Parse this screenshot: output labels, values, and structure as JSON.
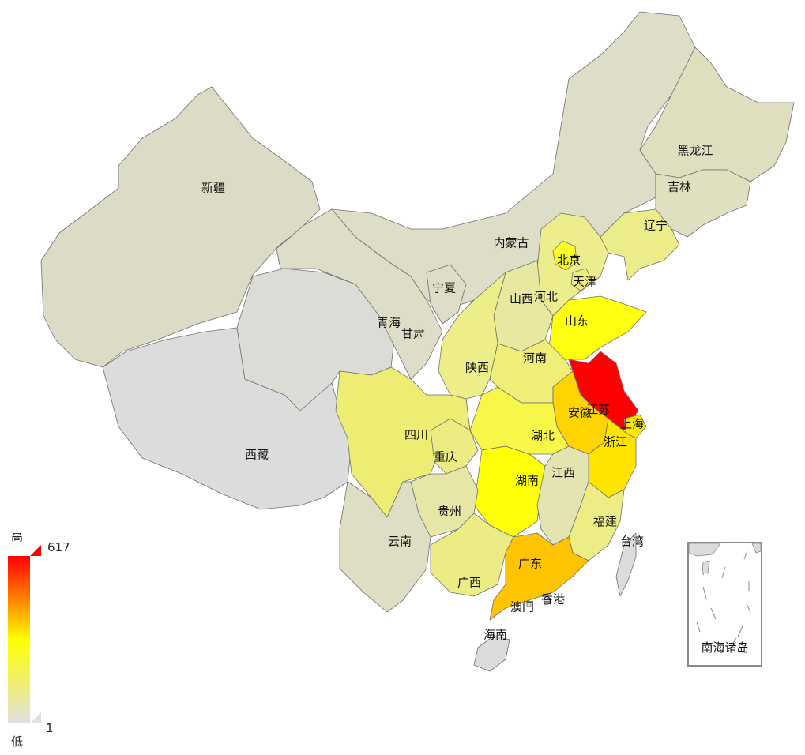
{
  "legend": {
    "high_label": "高",
    "low_label": "低",
    "max_value": "617",
    "min_value": "1",
    "colors": [
      "#ff0000",
      "#ffff00",
      "#e0e0e0"
    ]
  },
  "inset": {
    "label": "南海诸岛"
  },
  "provinces": [
    {
      "id": "xinjiang",
      "name": "新疆",
      "color": "#dcdcc6"
    },
    {
      "id": "xizang",
      "name": "西藏",
      "color": "#dcdcdc"
    },
    {
      "id": "qinghai",
      "name": "青海",
      "color": "#dcdcd6"
    },
    {
      "id": "gansu",
      "name": "甘肃",
      "color": "#dedec8"
    },
    {
      "id": "neimenggu",
      "name": "内蒙古",
      "color": "#dedec8"
    },
    {
      "id": "heilongjiang",
      "name": "黑龙江",
      "color": "#dfdfc0"
    },
    {
      "id": "jilin",
      "name": "吉林",
      "color": "#e0e0c0"
    },
    {
      "id": "liaoning",
      "name": "辽宁",
      "color": "#ecec8a"
    },
    {
      "id": "beijing",
      "name": "北京",
      "color": "#fbfb28"
    },
    {
      "id": "tianjin",
      "name": "天津",
      "color": "#eeee80"
    },
    {
      "id": "hebei",
      "name": "河北",
      "color": "#eded8e"
    },
    {
      "id": "shanxi",
      "name": "山西",
      "color": "#e8e8a0"
    },
    {
      "id": "ningxia",
      "name": "宁夏",
      "color": "#dedec8"
    },
    {
      "id": "shaanxi",
      "name": "陕西",
      "color": "#eded8a"
    },
    {
      "id": "shandong",
      "name": "山东",
      "color": "#ffff10"
    },
    {
      "id": "henan",
      "name": "河南",
      "color": "#efef78"
    },
    {
      "id": "jiangsu",
      "name": "江苏",
      "color": "#ff0000"
    },
    {
      "id": "anhui",
      "name": "安徽",
      "color": "#ffd400"
    },
    {
      "id": "shanghai",
      "name": "上海",
      "color": "#ffe800"
    },
    {
      "id": "zhejiang",
      "name": "浙江",
      "color": "#ffe400"
    },
    {
      "id": "hubei",
      "name": "湖北",
      "color": "#f7f748"
    },
    {
      "id": "sichuan",
      "name": "四川",
      "color": "#eded74"
    },
    {
      "id": "chongqing",
      "name": "重庆",
      "color": "#ecec82"
    },
    {
      "id": "hunan",
      "name": "湖南",
      "color": "#ffff08"
    },
    {
      "id": "jiangxi",
      "name": "江西",
      "color": "#e4e4b0"
    },
    {
      "id": "guizhou",
      "name": "贵州",
      "color": "#e6e6a6"
    },
    {
      "id": "yunnan",
      "name": "云南",
      "color": "#dedec4"
    },
    {
      "id": "guangxi",
      "name": "广西",
      "color": "#ecec84"
    },
    {
      "id": "guangdong",
      "name": "广东",
      "color": "#ffc400"
    },
    {
      "id": "fujian",
      "name": "福建",
      "color": "#eded86"
    },
    {
      "id": "taiwan",
      "name": "台湾",
      "color": "#dcdcdc"
    },
    {
      "id": "hainan",
      "name": "海南",
      "color": "#dcdcdc"
    },
    {
      "id": "hongkong",
      "name": "香港",
      "color": "#dcdcdc"
    },
    {
      "id": "macau",
      "name": "澳门",
      "color": "#dcdcdc"
    }
  ]
}
